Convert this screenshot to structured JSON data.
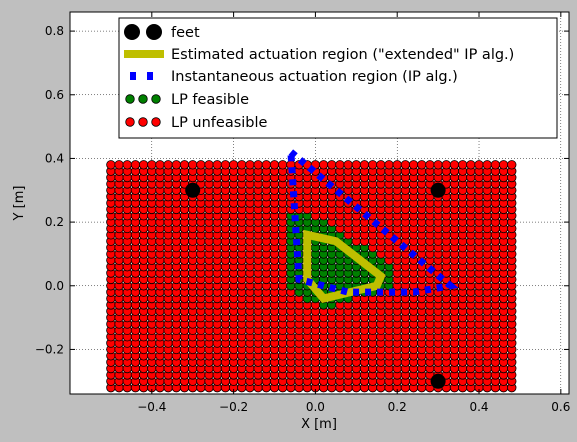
{
  "chart_data": {
    "type": "scatter",
    "xlabel": "X [m]",
    "ylabel": "Y [m]",
    "xlim": [
      -0.6,
      0.62
    ],
    "ylim": [
      -0.34,
      0.86
    ],
    "x_ticks": [
      -0.4,
      -0.2,
      0.0,
      0.2,
      0.4,
      0.6
    ],
    "x_tick_labels": [
      "−0.4",
      "−0.2",
      "0.0",
      "0.2",
      "0.4",
      "0.6"
    ],
    "y_ticks": [
      -0.2,
      0.0,
      0.2,
      0.4,
      0.6,
      0.8
    ],
    "y_tick_labels": [
      "−0.2",
      "0.0",
      "0.2",
      "0.4",
      "0.6",
      "0.8"
    ],
    "grid": true,
    "legend_position": "top-center",
    "grid_sampling": {
      "x_start": -0.5,
      "x_end": 0.48,
      "y_start": -0.32,
      "y_end": 0.38,
      "step": 0.02
    },
    "colors": {
      "feet": "#000000",
      "estimated": "#bfbf00",
      "instantaneous": "#0000ff",
      "feasible": "#008000",
      "unfeasible": "#ff0000",
      "marker_edge": "#000000"
    },
    "series": [
      {
        "name": "feet",
        "kind": "points",
        "points": [
          [
            -0.3,
            0.3
          ],
          [
            0.3,
            0.3
          ],
          [
            0.3,
            -0.3
          ]
        ]
      },
      {
        "name": "Estimated actuation region (\"extended\" IP alg.)",
        "kind": "polygon",
        "points": [
          [
            -0.02,
            0.16
          ],
          [
            0.05,
            0.14
          ],
          [
            0.16,
            0.03
          ],
          [
            0.15,
            0.0
          ],
          [
            0.02,
            -0.04
          ],
          [
            -0.02,
            0.02
          ]
        ]
      },
      {
        "name": "Instantaneous actuation region (IP alg.)",
        "kind": "polygon",
        "points": [
          [
            -0.06,
            0.42
          ],
          [
            0.33,
            0.0
          ],
          [
            0.24,
            -0.02
          ],
          [
            0.08,
            -0.02
          ],
          [
            -0.04,
            0.02
          ]
        ]
      },
      {
        "name": "LP feasible",
        "kind": "region",
        "polygon": [
          [
            -0.07,
            0.23
          ],
          [
            0.0,
            0.22
          ],
          [
            0.18,
            0.07
          ],
          [
            0.2,
            0.0
          ],
          [
            0.02,
            -0.07
          ],
          [
            -0.06,
            -0.02
          ]
        ]
      },
      {
        "name": "LP unfeasible",
        "kind": "region-complement"
      }
    ]
  }
}
